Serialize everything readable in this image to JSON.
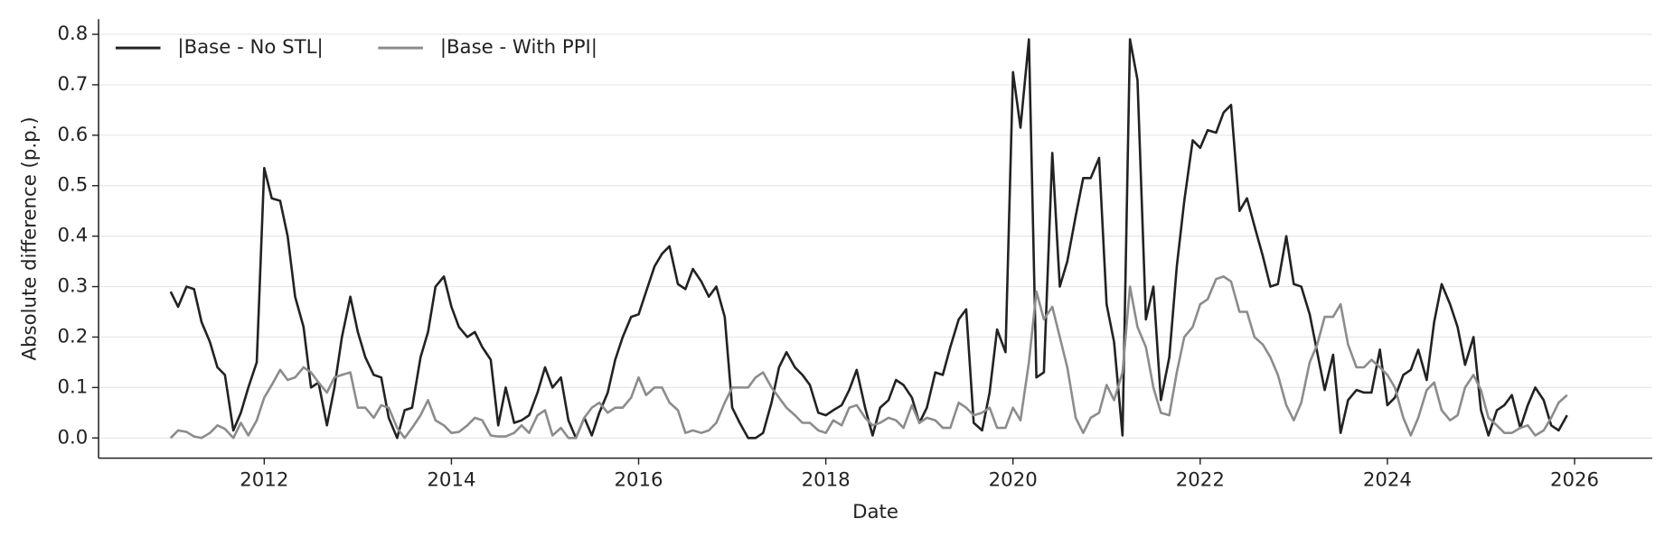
{
  "chart_data": {
    "type": "line",
    "x_label": "Date",
    "y_label": "Absolute difference (p.p.)",
    "x": [
      2011.0,
      2011.08,
      2011.17,
      2011.25,
      2011.33,
      2011.42,
      2011.5,
      2011.58,
      2011.67,
      2011.75,
      2011.83,
      2011.92,
      2012.0,
      2012.08,
      2012.17,
      2012.25,
      2012.33,
      2012.42,
      2012.5,
      2012.58,
      2012.67,
      2012.75,
      2012.83,
      2012.92,
      2013.0,
      2013.08,
      2013.17,
      2013.25,
      2013.33,
      2013.42,
      2013.5,
      2013.58,
      2013.67,
      2013.75,
      2013.83,
      2013.92,
      2014.0,
      2014.08,
      2014.17,
      2014.25,
      2014.33,
      2014.42,
      2014.5,
      2014.58,
      2014.67,
      2014.75,
      2014.83,
      2014.92,
      2015.0,
      2015.08,
      2015.17,
      2015.25,
      2015.33,
      2015.42,
      2015.5,
      2015.58,
      2015.67,
      2015.75,
      2015.83,
      2015.92,
      2016.0,
      2016.08,
      2016.17,
      2016.25,
      2016.33,
      2016.42,
      2016.5,
      2016.58,
      2016.67,
      2016.75,
      2016.83,
      2016.92,
      2017.0,
      2017.08,
      2017.17,
      2017.25,
      2017.33,
      2017.42,
      2017.5,
      2017.58,
      2017.67,
      2017.75,
      2017.83,
      2017.92,
      2018.0,
      2018.08,
      2018.17,
      2018.25,
      2018.33,
      2018.42,
      2018.5,
      2018.58,
      2018.67,
      2018.75,
      2018.83,
      2018.92,
      2019.0,
      2019.08,
      2019.17,
      2019.25,
      2019.33,
      2019.42,
      2019.5,
      2019.58,
      2019.67,
      2019.75,
      2019.83,
      2019.92,
      2020.0,
      2020.08,
      2020.17,
      2020.25,
      2020.33,
      2020.42,
      2020.5,
      2020.58,
      2020.67,
      2020.75,
      2020.83,
      2020.92,
      2021.0,
      2021.08,
      2021.17,
      2021.25,
      2021.33,
      2021.42,
      2021.5,
      2021.58,
      2021.67,
      2021.75,
      2021.83,
      2021.92,
      2022.0,
      2022.08,
      2022.17,
      2022.25,
      2022.33,
      2022.42,
      2022.5,
      2022.58,
      2022.67,
      2022.75,
      2022.83,
      2022.92,
      2023.0,
      2023.08,
      2023.17,
      2023.25,
      2023.33,
      2023.42,
      2023.5,
      2023.58,
      2023.67,
      2023.75,
      2023.83,
      2023.92,
      2024.0,
      2024.08,
      2024.17,
      2024.25,
      2024.33,
      2024.42,
      2024.5,
      2024.58,
      2024.67,
      2024.75,
      2024.83,
      2024.92,
      2025.0,
      2025.08,
      2025.17,
      2025.25,
      2025.33,
      2025.42,
      2025.5,
      2025.58,
      2025.67,
      2025.75,
      2025.83,
      2025.92
    ],
    "series": [
      {
        "name": "|Base - No STL|",
        "color": "#222222",
        "values": [
          0.29,
          0.26,
          0.3,
          0.295,
          0.23,
          0.19,
          0.14,
          0.125,
          0.015,
          0.05,
          0.1,
          0.15,
          0.535,
          0.475,
          0.47,
          0.4,
          0.28,
          0.22,
          0.1,
          0.11,
          0.025,
          0.1,
          0.2,
          0.28,
          0.21,
          0.16,
          0.125,
          0.12,
          0.04,
          0.0,
          0.055,
          0.06,
          0.16,
          0.21,
          0.3,
          0.32,
          0.26,
          0.22,
          0.2,
          0.21,
          0.18,
          0.155,
          0.025,
          0.1,
          0.03,
          0.035,
          0.045,
          0.09,
          0.14,
          0.1,
          0.12,
          0.035,
          0.0,
          0.04,
          0.005,
          0.05,
          0.09,
          0.155,
          0.2,
          0.24,
          0.245,
          0.29,
          0.34,
          0.365,
          0.38,
          0.305,
          0.295,
          0.335,
          0.31,
          0.28,
          0.3,
          0.24,
          0.06,
          0.03,
          0.0,
          0.0,
          0.01,
          0.07,
          0.14,
          0.17,
          0.14,
          0.125,
          0.105,
          0.05,
          0.045,
          0.055,
          0.065,
          0.095,
          0.135,
          0.06,
          0.005,
          0.06,
          0.075,
          0.115,
          0.105,
          0.08,
          0.03,
          0.06,
          0.13,
          0.125,
          0.18,
          0.235,
          0.255,
          0.03,
          0.015,
          0.09,
          0.215,
          0.17,
          0.725,
          0.615,
          0.79,
          0.12,
          0.13,
          0.565,
          0.3,
          0.35,
          0.44,
          0.515,
          0.515,
          0.555,
          0.265,
          0.19,
          0.005,
          0.79,
          0.71,
          0.235,
          0.3,
          0.075,
          0.16,
          0.34,
          0.47,
          0.59,
          0.575,
          0.61,
          0.605,
          0.645,
          0.66,
          0.45,
          0.475,
          0.42,
          0.36,
          0.3,
          0.305,
          0.4,
          0.305,
          0.3,
          0.245,
          0.17,
          0.095,
          0.165,
          0.01,
          0.075,
          0.095,
          0.09,
          0.09,
          0.175,
          0.065,
          0.08,
          0.125,
          0.135,
          0.175,
          0.115,
          0.23,
          0.305,
          0.265,
          0.22,
          0.145,
          0.2,
          0.055,
          0.005,
          0.055,
          0.065,
          0.085,
          0.02,
          0.065,
          0.1,
          0.075,
          0.025,
          0.015,
          0.045
        ]
      },
      {
        "name": "|Base - With PPI|",
        "color": "#8c8c8c",
        "values": [
          0.0,
          0.015,
          0.012,
          0.003,
          0.0,
          0.01,
          0.025,
          0.018,
          0.0,
          0.03,
          0.005,
          0.035,
          0.08,
          0.105,
          0.135,
          0.115,
          0.12,
          0.14,
          0.13,
          0.11,
          0.09,
          0.12,
          0.125,
          0.13,
          0.06,
          0.06,
          0.04,
          0.065,
          0.06,
          0.02,
          0.0,
          0.02,
          0.045,
          0.075,
          0.035,
          0.025,
          0.01,
          0.012,
          0.025,
          0.04,
          0.035,
          0.005,
          0.003,
          0.003,
          0.01,
          0.025,
          0.01,
          0.045,
          0.055,
          0.005,
          0.02,
          0.0,
          0.0,
          0.04,
          0.06,
          0.07,
          0.05,
          0.06,
          0.06,
          0.08,
          0.12,
          0.085,
          0.1,
          0.1,
          0.07,
          0.055,
          0.01,
          0.015,
          0.01,
          0.015,
          0.03,
          0.07,
          0.1,
          0.1,
          0.1,
          0.12,
          0.13,
          0.1,
          0.08,
          0.06,
          0.045,
          0.03,
          0.03,
          0.015,
          0.01,
          0.035,
          0.025,
          0.06,
          0.065,
          0.04,
          0.025,
          0.03,
          0.04,
          0.035,
          0.02,
          0.065,
          0.03,
          0.04,
          0.035,
          0.02,
          0.02,
          0.07,
          0.06,
          0.045,
          0.05,
          0.06,
          0.02,
          0.02,
          0.06,
          0.035,
          0.15,
          0.29,
          0.235,
          0.26,
          0.2,
          0.14,
          0.04,
          0.01,
          0.04,
          0.05,
          0.105,
          0.075,
          0.13,
          0.3,
          0.22,
          0.18,
          0.1,
          0.05,
          0.045,
          0.13,
          0.2,
          0.22,
          0.265,
          0.275,
          0.315,
          0.32,
          0.31,
          0.25,
          0.25,
          0.2,
          0.185,
          0.16,
          0.125,
          0.065,
          0.035,
          0.07,
          0.15,
          0.185,
          0.24,
          0.24,
          0.265,
          0.185,
          0.14,
          0.14,
          0.155,
          0.14,
          0.125,
          0.1,
          0.04,
          0.005,
          0.04,
          0.095,
          0.11,
          0.055,
          0.035,
          0.045,
          0.1,
          0.125,
          0.095,
          0.04,
          0.025,
          0.01,
          0.01,
          0.02,
          0.025,
          0.005,
          0.015,
          0.04,
          0.07,
          0.085
        ]
      }
    ],
    "xlim": [
      2010.23,
      2026.83
    ],
    "xticks": [
      2012,
      2014,
      2016,
      2018,
      2020,
      2022,
      2024,
      2026
    ],
    "ylim": [
      -0.04,
      0.83
    ],
    "yticks": [
      0.0,
      0.1,
      0.2,
      0.3,
      0.4,
      0.5,
      0.6,
      0.7,
      0.8
    ],
    "grid": true,
    "legend": "upper-left"
  }
}
